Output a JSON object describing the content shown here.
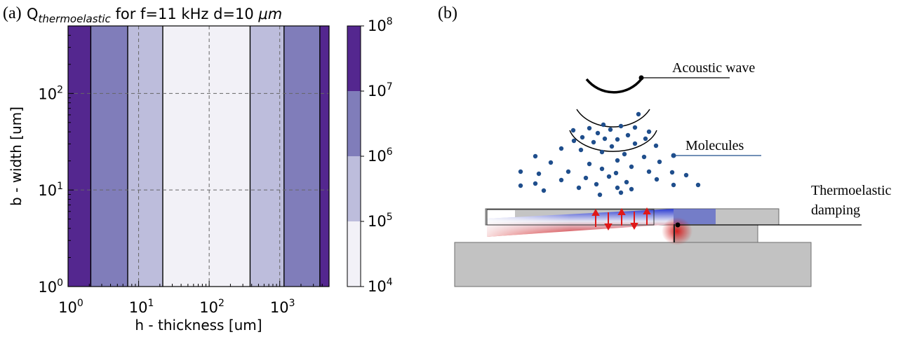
{
  "panel_a": {
    "label": "(a)",
    "title_prefix": "Q",
    "title_subscript": "thermoelastic",
    "title_rest": " for f=11 kHz d=10 ",
    "title_unit": "μm"
  },
  "panel_b": {
    "label": "(b)",
    "annotations": {
      "acoustic_wave": "Acoustic wave",
      "molecules": "Molecules",
      "thermoelastic_line1": "Thermoelastic",
      "thermoelastic_line2": "damping"
    },
    "colors": {
      "molecules": "#1f4e8c",
      "hot": "#d22222",
      "cold": "#2233cc",
      "substrate": "#c0c0c0"
    }
  },
  "chart_data": {
    "type": "heatmap",
    "xlabel": "h - thickness [um]",
    "ylabel": "b - width [um]",
    "x_scale": "log",
    "y_scale": "log",
    "xlim": [
      1,
      5000
    ],
    "ylim": [
      1,
      500
    ],
    "x_ticks": [
      {
        "base": "10",
        "exp": "0"
      },
      {
        "base": "10",
        "exp": "1"
      },
      {
        "base": "10",
        "exp": "2"
      },
      {
        "base": "10",
        "exp": "3"
      }
    ],
    "y_ticks": [
      {
        "base": "10",
        "exp": "0"
      },
      {
        "base": "10",
        "exp": "1"
      },
      {
        "base": "10",
        "exp": "2"
      }
    ],
    "grid": true,
    "bands": [
      {
        "h_from": 1,
        "h_to": 2.1,
        "level": 4
      },
      {
        "h_from": 2.1,
        "h_to": 7,
        "level": 3
      },
      {
        "h_from": 7,
        "h_to": 22,
        "level": 2
      },
      {
        "h_from": 22,
        "h_to": 380,
        "level": 1
      },
      {
        "h_from": 380,
        "h_to": 1150,
        "level": 2
      },
      {
        "h_from": 1150,
        "h_to": 3700,
        "level": 3
      },
      {
        "h_from": 3700,
        "h_to": 5000,
        "level": 4
      }
    ],
    "colorbar": {
      "scale": "log",
      "range": [
        10000,
        100000000
      ],
      "levels": [
        {
          "from": 10000,
          "to": 100000,
          "color": "#f2f1f7"
        },
        {
          "from": 100000,
          "to": 1000000,
          "color": "#bdbddc"
        },
        {
          "from": 1000000,
          "to": 10000000,
          "color": "#807dba"
        },
        {
          "from": 10000000,
          "to": 100000000,
          "color": "#54278f"
        }
      ],
      "ticks": [
        {
          "base": "10",
          "exp": "4"
        },
        {
          "base": "10",
          "exp": "5"
        },
        {
          "base": "10",
          "exp": "6"
        },
        {
          "base": "10",
          "exp": "7"
        },
        {
          "base": "10",
          "exp": "8"
        }
      ]
    }
  }
}
